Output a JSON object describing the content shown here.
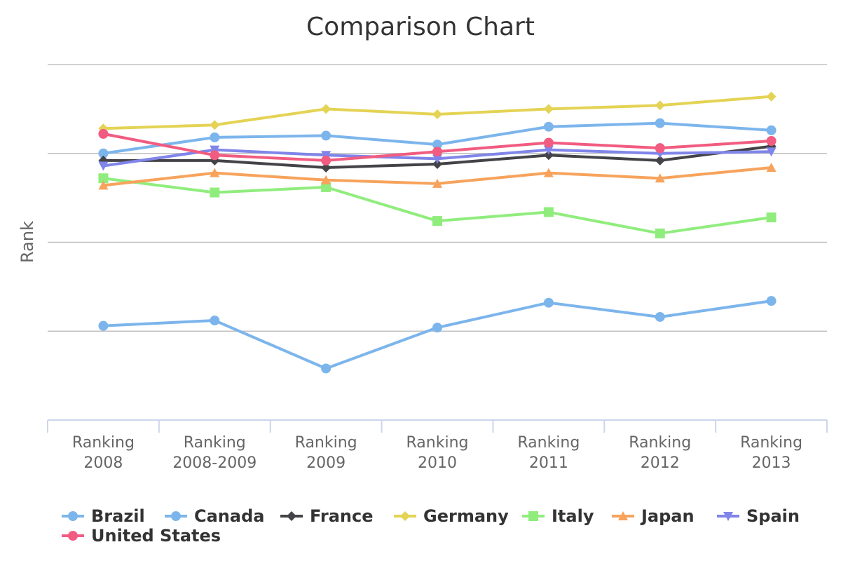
{
  "chart_data": {
    "type": "line",
    "title": "Comparison Chart",
    "xlabel": "",
    "ylabel": "Rank",
    "categories": [
      [
        "Ranking",
        "2008"
      ],
      [
        "Ranking",
        "2008-2009"
      ],
      [
        "Ranking",
        "2009"
      ],
      [
        "Ranking",
        "2010"
      ],
      [
        "Ranking",
        "2011"
      ],
      [
        "Ranking",
        "2012"
      ],
      [
        "Ranking",
        "2013"
      ]
    ],
    "ylim": [
      0,
      4
    ],
    "ygrid": [
      0,
      1,
      2,
      3,
      4
    ],
    "grid": true,
    "legend_position": "bottom",
    "series": [
      {
        "name": "Brazil",
        "color": "#7cb5ec",
        "marker": "circle",
        "values": [
          1.06,
          1.12,
          0.58,
          1.04,
          1.32,
          1.16,
          1.34
        ]
      },
      {
        "name": "Canada",
        "color": "#7cb5ec",
        "marker": "circle",
        "values": [
          3.0,
          3.18,
          3.2,
          3.1,
          3.3,
          3.34,
          3.26
        ]
      },
      {
        "name": "France",
        "color": "#434348",
        "marker": "diamond",
        "values": [
          2.92,
          2.92,
          2.84,
          2.88,
          2.98,
          2.92,
          3.08
        ]
      },
      {
        "name": "Germany",
        "color": "#e4d354",
        "marker": "diamond",
        "values": [
          3.28,
          3.32,
          3.5,
          3.44,
          3.5,
          3.54,
          3.64
        ]
      },
      {
        "name": "Italy",
        "color": "#90ed7d",
        "marker": "square",
        "values": [
          2.72,
          2.56,
          2.62,
          2.24,
          2.34,
          2.1,
          2.28
        ]
      },
      {
        "name": "Japan",
        "color": "#f7a35c",
        "marker": "triangle",
        "values": [
          2.64,
          2.78,
          2.7,
          2.66,
          2.78,
          2.72,
          2.84
        ]
      },
      {
        "name": "Spain",
        "color": "#8085e9",
        "marker": "triangle-down",
        "values": [
          2.86,
          3.04,
          2.98,
          2.94,
          3.04,
          3.0,
          3.02
        ]
      },
      {
        "name": "United States",
        "color": "#f15c80",
        "marker": "circle",
        "values": [
          3.22,
          2.98,
          2.92,
          3.02,
          3.12,
          3.06,
          3.14
        ]
      }
    ]
  }
}
